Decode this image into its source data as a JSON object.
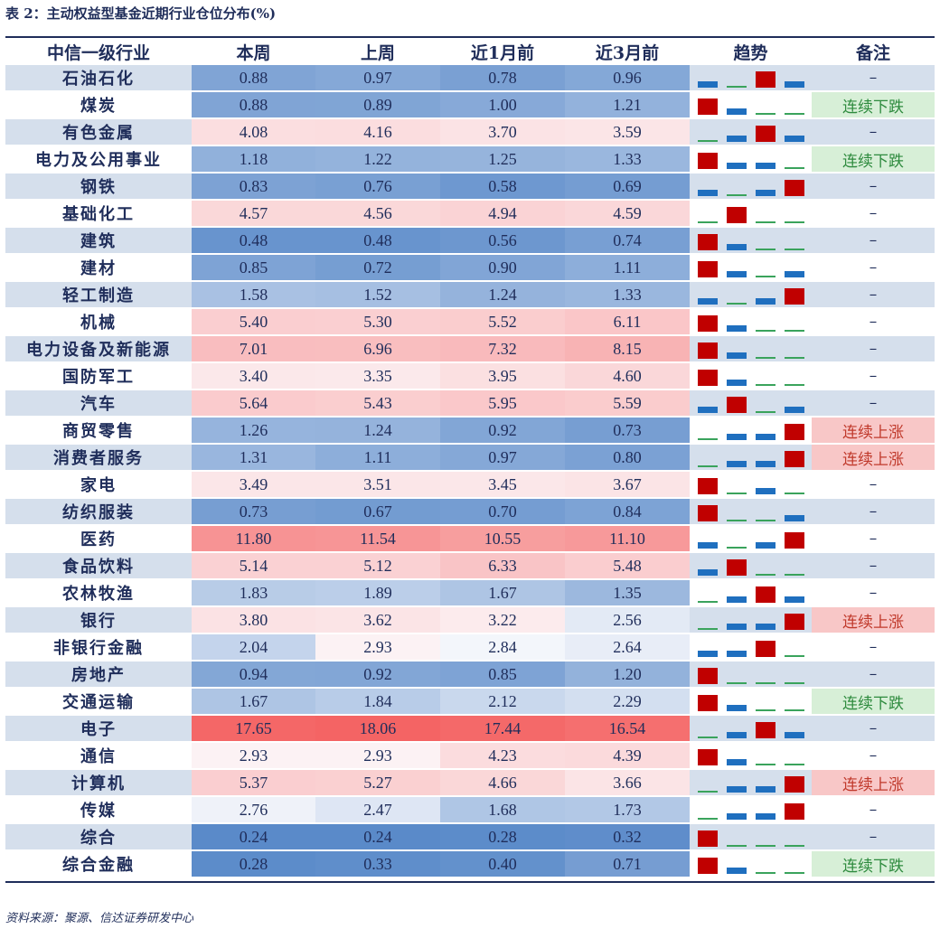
{
  "title": "表 2：主动权益型基金近期行业仓位分布(%)",
  "source": "资料来源：聚源、信达证券研发中心",
  "headers": [
    "中信一级行业",
    "本周",
    "上周",
    "近1月前",
    "近3月前",
    "趋势",
    "备注"
  ],
  "colors": {
    "up": "#c00000",
    "down": "#1f6fbf",
    "flat": "#3aa35c",
    "note_up_bg": "#f8c7c7",
    "note_up_fg": "#c0392b",
    "note_down_bg": "#d7efd7",
    "note_down_fg": "#2e8b3e"
  },
  "rows": [
    {
      "name": "石油石化",
      "v": [
        "0.88",
        "0.97",
        "0.78",
        "0.96"
      ],
      "trend": [
        "down",
        "flat",
        "up",
        "down"
      ],
      "note": "–"
    },
    {
      "name": "煤炭",
      "v": [
        "0.88",
        "0.89",
        "1.00",
        "1.21"
      ],
      "trend": [
        "up",
        "down",
        "flat",
        "flat"
      ],
      "note": "连续下跌",
      "nt": "down"
    },
    {
      "name": "有色金属",
      "v": [
        "4.08",
        "4.16",
        "3.70",
        "3.59"
      ],
      "trend": [
        "flat",
        "down",
        "up",
        "down"
      ],
      "note": "–"
    },
    {
      "name": "电力及公用事业",
      "v": [
        "1.18",
        "1.22",
        "1.25",
        "1.33"
      ],
      "trend": [
        "up",
        "down",
        "down",
        "flat"
      ],
      "note": "连续下跌",
      "nt": "down"
    },
    {
      "name": "钢铁",
      "v": [
        "0.83",
        "0.76",
        "0.58",
        "0.69"
      ],
      "trend": [
        "down",
        "flat",
        "down",
        "up"
      ],
      "note": "–"
    },
    {
      "name": "基础化工",
      "v": [
        "4.57",
        "4.56",
        "4.94",
        "4.59"
      ],
      "trend": [
        "flat",
        "up",
        "flat",
        "flat"
      ],
      "note": "–"
    },
    {
      "name": "建筑",
      "v": [
        "0.48",
        "0.48",
        "0.56",
        "0.74"
      ],
      "trend": [
        "up",
        "down",
        "flat",
        "flat"
      ],
      "note": "–"
    },
    {
      "name": "建材",
      "v": [
        "0.85",
        "0.72",
        "0.90",
        "1.11"
      ],
      "trend": [
        "up",
        "down",
        "flat",
        "down"
      ],
      "note": "–"
    },
    {
      "name": "轻工制造",
      "v": [
        "1.58",
        "1.52",
        "1.24",
        "1.33"
      ],
      "trend": [
        "down",
        "flat",
        "down",
        "up"
      ],
      "note": "–"
    },
    {
      "name": "机械",
      "v": [
        "5.40",
        "5.30",
        "5.52",
        "6.11"
      ],
      "trend": [
        "up",
        "down",
        "flat",
        "flat"
      ],
      "note": "–"
    },
    {
      "name": "电力设备及新能源",
      "v": [
        "7.01",
        "6.96",
        "7.32",
        "8.15"
      ],
      "trend": [
        "up",
        "down",
        "flat",
        "flat"
      ],
      "note": "–"
    },
    {
      "name": "国防军工",
      "v": [
        "3.40",
        "3.35",
        "3.95",
        "4.60"
      ],
      "trend": [
        "up",
        "down",
        "flat",
        "flat"
      ],
      "note": "–"
    },
    {
      "name": "汽车",
      "v": [
        "5.64",
        "5.43",
        "5.95",
        "5.59"
      ],
      "trend": [
        "down",
        "up",
        "flat",
        "down"
      ],
      "note": "–"
    },
    {
      "name": "商贸零售",
      "v": [
        "1.26",
        "1.24",
        "0.92",
        "0.73"
      ],
      "trend": [
        "flat",
        "down",
        "down",
        "up"
      ],
      "note": "连续上涨",
      "nt": "up"
    },
    {
      "name": "消费者服务",
      "v": [
        "1.31",
        "1.11",
        "0.97",
        "0.80"
      ],
      "trend": [
        "flat",
        "down",
        "down",
        "up"
      ],
      "note": "连续上涨",
      "nt": "up"
    },
    {
      "name": "家电",
      "v": [
        "3.49",
        "3.51",
        "3.45",
        "3.67"
      ],
      "trend": [
        "up",
        "flat",
        "down",
        "flat"
      ],
      "note": "–"
    },
    {
      "name": "纺织服装",
      "v": [
        "0.73",
        "0.67",
        "0.70",
        "0.84"
      ],
      "trend": [
        "up",
        "flat",
        "flat",
        "down"
      ],
      "note": "–"
    },
    {
      "name": "医药",
      "v": [
        "11.80",
        "11.54",
        "10.55",
        "11.10"
      ],
      "trend": [
        "down",
        "flat",
        "down",
        "up"
      ],
      "note": "–"
    },
    {
      "name": "食品饮料",
      "v": [
        "5.14",
        "5.12",
        "6.33",
        "5.48"
      ],
      "trend": [
        "down",
        "up",
        "flat",
        "flat"
      ],
      "note": "–"
    },
    {
      "name": "农林牧渔",
      "v": [
        "1.83",
        "1.89",
        "1.67",
        "1.35"
      ],
      "trend": [
        "flat",
        "down",
        "up",
        "down"
      ],
      "note": "–"
    },
    {
      "name": "银行",
      "v": [
        "3.80",
        "3.62",
        "3.22",
        "2.56"
      ],
      "trend": [
        "flat",
        "down",
        "down",
        "up"
      ],
      "note": "连续上涨",
      "nt": "up"
    },
    {
      "name": "非银行金融",
      "v": [
        "2.04",
        "2.93",
        "2.84",
        "2.64"
      ],
      "trend": [
        "down",
        "down",
        "up",
        "flat"
      ],
      "note": "–"
    },
    {
      "name": "房地产",
      "v": [
        "0.94",
        "0.92",
        "0.85",
        "1.20"
      ],
      "trend": [
        "up",
        "flat",
        "flat",
        "flat"
      ],
      "note": "–"
    },
    {
      "name": "交通运输",
      "v": [
        "1.67",
        "1.84",
        "2.12",
        "2.29"
      ],
      "trend": [
        "up",
        "down",
        "flat",
        "flat"
      ],
      "note": "连续下跌",
      "nt": "down"
    },
    {
      "name": "电子",
      "v": [
        "17.65",
        "18.06",
        "17.44",
        "16.54"
      ],
      "trend": [
        "flat",
        "down",
        "up",
        "down"
      ],
      "note": "–"
    },
    {
      "name": "通信",
      "v": [
        "2.93",
        "2.93",
        "4.23",
        "4.39"
      ],
      "trend": [
        "up",
        "down",
        "flat",
        "flat"
      ],
      "note": "–"
    },
    {
      "name": "计算机",
      "v": [
        "5.37",
        "5.27",
        "4.66",
        "3.66"
      ],
      "trend": [
        "flat",
        "down",
        "down",
        "up"
      ],
      "note": "连续上涨",
      "nt": "up"
    },
    {
      "name": "传媒",
      "v": [
        "2.76",
        "2.47",
        "1.68",
        "1.73"
      ],
      "trend": [
        "flat",
        "down",
        "down",
        "up"
      ],
      "note": "–"
    },
    {
      "name": "综合",
      "v": [
        "0.24",
        "0.24",
        "0.28",
        "0.32"
      ],
      "trend": [
        "up",
        "flat",
        "flat",
        "flat"
      ],
      "note": "–"
    },
    {
      "name": "综合金融",
      "v": [
        "0.28",
        "0.33",
        "0.40",
        "0.71"
      ],
      "trend": [
        "up",
        "down",
        "flat",
        "flat"
      ],
      "note": "连续下跌",
      "nt": "down"
    }
  ]
}
